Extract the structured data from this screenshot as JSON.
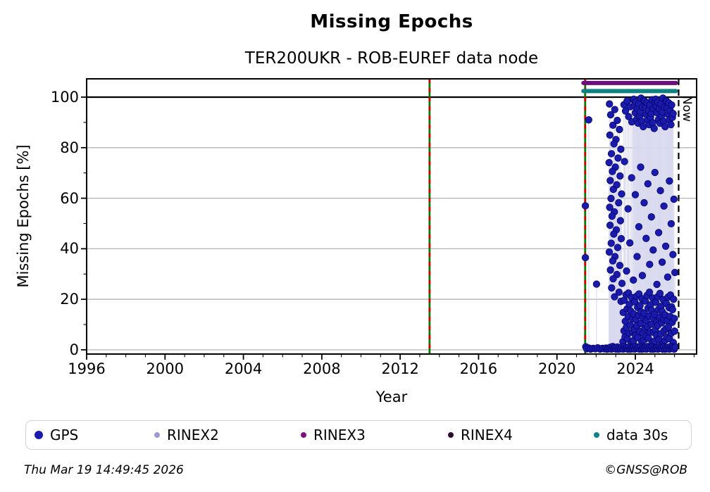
{
  "header": {
    "title": "Missing Epochs",
    "subtitle": "TER200UKR - ROB-EUREF data node"
  },
  "axes": {
    "x": {
      "label": "Year",
      "major_ticks": [
        1996,
        2000,
        2004,
        2008,
        2012,
        2016,
        2020,
        2024
      ],
      "minor_step_years": 1,
      "range": [
        1996,
        2027.13
      ]
    },
    "y": {
      "label": "Missing Epochs [%]",
      "major_ticks": [
        0,
        20,
        40,
        60,
        80,
        100
      ],
      "minor_step": 10,
      "range_pct": [
        0,
        107.2
      ]
    }
  },
  "annotations": {
    "now_label": "Now"
  },
  "legend": {
    "items": [
      {
        "label": "GPS",
        "color": "#1a1aad",
        "size": "large"
      },
      {
        "label": "RINEX2",
        "color": "#9a9ad2",
        "size": "small"
      },
      {
        "label": "RINEX3",
        "color": "#7d107d",
        "size": "small"
      },
      {
        "label": "RINEX4",
        "color": "#2e0b2e",
        "size": "small"
      },
      {
        "label": "data 30s",
        "color": "#0e8282",
        "size": "small"
      }
    ]
  },
  "footer": {
    "timestamp": "Thu Mar 19 14:49:45 2026",
    "credit": "©GNSS@ROB"
  },
  "colors": {
    "gps_point": "#1a1aad",
    "gps_point_edge": "#00005e",
    "stem": "#d9d9ef",
    "grid": "#b4b4b4",
    "hundred_line": "#000000",
    "frame": "#000000",
    "event_line_green": "#007d00",
    "event_line_red": "#d40000",
    "now_line": "#000000",
    "rinex3_band": "#6e0e7e",
    "data30s_band": "#0e8282"
  },
  "chart_data": {
    "type": "scatter",
    "title": "Missing Epochs",
    "subtitle": "TER200UKR - ROB-EUREF data node",
    "xlabel": "Year",
    "ylabel": "Missing Epochs [%]",
    "xlim": [
      1996,
      2027.13
    ],
    "ylim": [
      0,
      107.2
    ],
    "grid": "horizontal-major-gray, solid black line at 100",
    "legend_position": "bottom",
    "event_lines": [
      {
        "year": 2013.5,
        "style": "vertical green with red dashes"
      },
      {
        "year": 2021.44,
        "style": "vertical green with red dashes"
      }
    ],
    "now_line": {
      "year": 2026.21,
      "label": "Now",
      "style": "vertical black dashed"
    },
    "bands": [
      {
        "name": "RINEX3",
        "color": "#6e0e7e",
        "year_start": 2021.35,
        "year_end": 2026.07,
        "display_pct": 105.6
      },
      {
        "name": "data 30s",
        "color": "#0e8282",
        "year_start": 2021.35,
        "year_end": 2026.07,
        "display_pct": 102.4
      }
    ],
    "series_name": "GPS",
    "gps_points": [
      [
        2021.45,
        57
      ],
      [
        2021.45,
        36.5
      ],
      [
        2021.62,
        91
      ],
      [
        2021.47,
        1.2
      ],
      [
        2021.52,
        0.4
      ],
      [
        2021.63,
        0.7
      ],
      [
        2021.72,
        0.3
      ],
      [
        2021.84,
        0.6
      ],
      [
        2021.96,
        0.4
      ],
      [
        2022.08,
        0.8
      ],
      [
        2022.2,
        0.3
      ],
      [
        2022.32,
        0.6
      ],
      [
        2022.41,
        0.4
      ],
      [
        2022.5,
        0.7
      ],
      [
        2022.02,
        26
      ],
      [
        2022.68,
        97.3
      ],
      [
        2022.95,
        95.1
      ],
      [
        2022.74,
        93.0
      ],
      [
        2023.08,
        90.8
      ],
      [
        2022.86,
        88.9
      ],
      [
        2023.19,
        87.2
      ],
      [
        2022.7,
        85.0
      ],
      [
        2023.01,
        83.2
      ],
      [
        2022.91,
        81.5
      ],
      [
        2023.26,
        79.4
      ],
      [
        2022.78,
        77.6
      ],
      [
        2023.12,
        75.9
      ],
      [
        2022.66,
        74.1
      ],
      [
        2022.98,
        72.3
      ],
      [
        2022.83,
        70.6
      ],
      [
        2023.22,
        68.8
      ],
      [
        2022.72,
        67.0
      ],
      [
        2023.05,
        65.3
      ],
      [
        2022.88,
        63.5
      ],
      [
        2023.3,
        61.7
      ],
      [
        2022.76,
        59.9
      ],
      [
        2023.15,
        58.2
      ],
      [
        2022.69,
        56.4
      ],
      [
        2022.93,
        54.6
      ],
      [
        2022.81,
        52.9
      ],
      [
        2023.24,
        51.1
      ],
      [
        2022.71,
        49.3
      ],
      [
        2023.03,
        47.5
      ],
      [
        2022.9,
        45.8
      ],
      [
        2023.28,
        44.0
      ],
      [
        2022.77,
        42.2
      ],
      [
        2023.1,
        40.5
      ],
      [
        2022.67,
        38.7
      ],
      [
        2022.96,
        36.9
      ],
      [
        2022.85,
        35.2
      ],
      [
        2023.21,
        33.4
      ],
      [
        2022.73,
        31.6
      ],
      [
        2023.06,
        29.8
      ],
      [
        2022.87,
        28.1
      ],
      [
        2023.32,
        26.3
      ],
      [
        2022.79,
        24.5
      ],
      [
        2023.17,
        22.8
      ],
      [
        2022.94,
        21.0
      ],
      [
        2023.27,
        19.2
      ],
      [
        2023.42,
        97.0
      ],
      [
        2023.5,
        94.5
      ],
      [
        2023.58,
        98.5
      ],
      [
        2023.66,
        92.3
      ],
      [
        2023.74,
        96.2
      ],
      [
        2023.82,
        90.2
      ],
      [
        2023.88,
        99.0
      ],
      [
        2023.45,
        74.5
      ],
      [
        2023.55,
        31.2
      ],
      [
        2023.63,
        55.8
      ],
      [
        2023.72,
        42.3
      ],
      [
        2023.81,
        68.1
      ],
      [
        2023.9,
        27.6
      ],
      [
        2024.0,
        61.4
      ],
      [
        2024.09,
        36.9
      ],
      [
        2024.18,
        48.7
      ],
      [
        2024.27,
        72.3
      ],
      [
        2024.36,
        29.4
      ],
      [
        2024.45,
        58.2
      ],
      [
        2024.55,
        44.1
      ],
      [
        2024.64,
        65.7
      ],
      [
        2024.73,
        33.8
      ],
      [
        2024.82,
        52.6
      ],
      [
        2024.91,
        39.5
      ],
      [
        2025.0,
        70.2
      ],
      [
        2025.1,
        25.9
      ],
      [
        2025.19,
        46.4
      ],
      [
        2025.28,
        63.0
      ],
      [
        2025.37,
        34.7
      ],
      [
        2025.46,
        56.9
      ],
      [
        2025.55,
        41.0
      ],
      [
        2025.65,
        28.8
      ],
      [
        2025.74,
        66.8
      ],
      [
        2025.83,
        49.9
      ],
      [
        2025.92,
        37.7
      ],
      [
        2025.97,
        59.6
      ],
      [
        2026.02,
        30.6
      ],
      [
        2023.92,
        99.2
      ],
      [
        2023.957,
        96.5
      ],
      [
        2023.994,
        93.8
      ],
      [
        2024.032,
        98.1
      ],
      [
        2024.069,
        91.2
      ],
      [
        2024.106,
        95.3
      ],
      [
        2024.143,
        89.7
      ],
      [
        2024.18,
        97.4
      ],
      [
        2024.218,
        92.6
      ],
      [
        2024.255,
        94.2
      ],
      [
        2024.292,
        99.6
      ],
      [
        2024.329,
        90.5
      ],
      [
        2024.366,
        96.0
      ],
      [
        2024.404,
        88.3
      ],
      [
        2024.441,
        98.8
      ],
      [
        2024.478,
        98.4
      ],
      [
        2024.515,
        95.8
      ],
      [
        2024.552,
        93.1
      ],
      [
        2024.59,
        97.7
      ],
      [
        2024.627,
        90.8
      ],
      [
        2024.664,
        94.7
      ],
      [
        2024.701,
        89.1
      ],
      [
        2024.738,
        96.9
      ],
      [
        2024.776,
        92.0
      ],
      [
        2024.813,
        93.5
      ],
      [
        2024.85,
        99.0
      ],
      [
        2024.887,
        89.9
      ],
      [
        2024.924,
        95.5
      ],
      [
        2024.962,
        87.6
      ],
      [
        2024.999,
        98.2
      ],
      [
        2025.036,
        99.2
      ],
      [
        2025.073,
        96.5
      ],
      [
        2025.11,
        93.8
      ],
      [
        2025.148,
        98.1
      ],
      [
        2025.185,
        91.2
      ],
      [
        2025.222,
        95.3
      ],
      [
        2025.259,
        89.7
      ],
      [
        2025.296,
        97.4
      ],
      [
        2025.334,
        92.6
      ],
      [
        2025.371,
        94.2
      ],
      [
        2025.408,
        99.6
      ],
      [
        2025.445,
        90.5
      ],
      [
        2025.482,
        96.0
      ],
      [
        2025.52,
        88.3
      ],
      [
        2025.557,
        98.8
      ],
      [
        2025.594,
        98.4
      ],
      [
        2025.631,
        95.8
      ],
      [
        2025.668,
        93.1
      ],
      [
        2025.706,
        97.7
      ],
      [
        2025.743,
        90.8
      ],
      [
        2025.78,
        94.7
      ],
      [
        2025.817,
        89.1
      ],
      [
        2025.854,
        96.9
      ],
      [
        2025.892,
        92.0
      ],
      [
        2025.929,
        93.5
      ],
      [
        2023.366,
        3.2
      ],
      [
        2023.381,
        14.8
      ],
      [
        2023.42,
        7.5
      ],
      [
        2023.434,
        19.6
      ],
      [
        2023.473,
        5.1
      ],
      [
        2023.488,
        11.3
      ],
      [
        2023.527,
        21.8
      ],
      [
        2023.542,
        8.9
      ],
      [
        2023.58,
        16.2
      ],
      [
        2023.595,
        4.3
      ],
      [
        2023.634,
        13.1
      ],
      [
        2023.649,
        22.5
      ],
      [
        2023.688,
        6.7
      ],
      [
        2023.702,
        18.0
      ],
      [
        2023.741,
        9.8
      ],
      [
        2023.756,
        15.4
      ],
      [
        2023.795,
        2.6
      ],
      [
        2023.81,
        20.7
      ],
      [
        2023.848,
        12.2
      ],
      [
        2023.863,
        7.1
      ],
      [
        2023.902,
        3.6
      ],
      [
        2023.917,
        14.2
      ],
      [
        2023.956,
        8.1
      ],
      [
        2023.97,
        19.0
      ],
      [
        2024.009,
        5.6
      ],
      [
        2024.024,
        11.9
      ],
      [
        2024.063,
        21.2
      ],
      [
        2024.078,
        9.5
      ],
      [
        2024.116,
        16.8
      ],
      [
        2024.131,
        4.8
      ],
      [
        2024.17,
        13.7
      ],
      [
        2024.185,
        22.1
      ],
      [
        2024.224,
        7.3
      ],
      [
        2024.238,
        17.5
      ],
      [
        2024.277,
        10.4
      ],
      [
        2024.292,
        15.0
      ],
      [
        2024.331,
        3.0
      ],
      [
        2024.346,
        20.2
      ],
      [
        2024.384,
        12.8
      ],
      [
        2024.399,
        6.5
      ],
      [
        2024.438,
        3.9
      ],
      [
        2024.453,
        14.5
      ],
      [
        2024.492,
        8.5
      ],
      [
        2024.506,
        19.3
      ],
      [
        2024.545,
        5.3
      ],
      [
        2024.56,
        11.6
      ],
      [
        2024.599,
        21.5
      ],
      [
        2024.614,
        9.2
      ],
      [
        2024.652,
        16.5
      ],
      [
        2024.667,
        4.6
      ],
      [
        2024.706,
        13.4
      ],
      [
        2024.721,
        22.8
      ],
      [
        2024.76,
        7.0
      ],
      [
        2024.774,
        17.8
      ],
      [
        2024.813,
        10.1
      ],
      [
        2024.828,
        15.7
      ],
      [
        2024.867,
        2.8
      ],
      [
        2024.882,
        20.5
      ],
      [
        2024.92,
        12.5
      ],
      [
        2024.935,
        6.9
      ],
      [
        2024.974,
        3.4
      ],
      [
        2024.989,
        14.0
      ],
      [
        2025.028,
        7.8
      ],
      [
        2025.042,
        18.8
      ],
      [
        2025.081,
        5.8
      ],
      [
        2025.096,
        11.0
      ],
      [
        2025.135,
        21.0
      ],
      [
        2025.15,
        9.7
      ],
      [
        2025.188,
        16.0
      ],
      [
        2025.203,
        4.1
      ],
      [
        2025.242,
        12.9
      ],
      [
        2025.257,
        22.3
      ],
      [
        2025.296,
        6.3
      ],
      [
        2025.31,
        17.2
      ],
      [
        2025.349,
        10.7
      ],
      [
        2025.364,
        15.2
      ],
      [
        2025.403,
        2.4
      ],
      [
        2025.418,
        19.9
      ],
      [
        2025.456,
        12.0
      ],
      [
        2025.471,
        7.6
      ],
      [
        2025.51,
        3.7
      ],
      [
        2025.525,
        13.8
      ],
      [
        2025.564,
        8.3
      ],
      [
        2025.578,
        18.4
      ],
      [
        2025.617,
        5.0
      ],
      [
        2025.632,
        11.5
      ],
      [
        2025.671,
        20.9
      ],
      [
        2025.686,
        9.0
      ],
      [
        2025.724,
        16.7
      ],
      [
        2025.739,
        4.4
      ],
      [
        2025.778,
        13.2
      ],
      [
        2025.793,
        21.7
      ],
      [
        2025.832,
        6.6
      ],
      [
        2025.846,
        17.0
      ],
      [
        2025.885,
        10.9
      ],
      [
        2025.9,
        15.9
      ],
      [
        2025.939,
        2.9
      ],
      [
        2025.954,
        20.0
      ],
      [
        2025.992,
        12.4
      ],
      [
        2026.007,
        7.4
      ],
      [
        2022.55,
        0.2
      ],
      [
        2022.609,
        0.7
      ],
      [
        2022.668,
        0.4
      ],
      [
        2022.728,
        1.0
      ],
      [
        2022.787,
        0.3
      ],
      [
        2022.846,
        1.3
      ],
      [
        2022.905,
        0.6
      ],
      [
        2022.964,
        0.9
      ],
      [
        2023.024,
        0.25
      ],
      [
        2023.083,
        1.1
      ],
      [
        2023.142,
        0.2
      ],
      [
        2023.201,
        0.7
      ],
      [
        2023.26,
        0.4
      ],
      [
        2023.32,
        1.0
      ],
      [
        2023.379,
        0.3
      ],
      [
        2023.438,
        1.3
      ],
      [
        2023.497,
        0.6
      ],
      [
        2023.556,
        0.9
      ],
      [
        2023.616,
        0.25
      ],
      [
        2023.675,
        1.1
      ],
      [
        2023.734,
        0.2
      ],
      [
        2023.793,
        0.7
      ],
      [
        2023.852,
        0.4
      ],
      [
        2023.912,
        1.0
      ],
      [
        2023.971,
        0.3
      ],
      [
        2024.03,
        1.3
      ],
      [
        2024.089,
        0.6
      ],
      [
        2024.148,
        0.9
      ],
      [
        2024.208,
        0.25
      ],
      [
        2024.267,
        1.1
      ],
      [
        2024.326,
        0.2
      ],
      [
        2024.385,
        0.7
      ],
      [
        2024.444,
        0.4
      ],
      [
        2024.504,
        1.0
      ],
      [
        2024.563,
        0.3
      ],
      [
        2024.622,
        1.3
      ],
      [
        2024.681,
        0.6
      ],
      [
        2024.74,
        0.9
      ],
      [
        2024.8,
        0.25
      ],
      [
        2024.859,
        1.1
      ],
      [
        2024.918,
        0.2
      ],
      [
        2024.977,
        0.7
      ],
      [
        2025.036,
        0.4
      ],
      [
        2025.096,
        1.0
      ],
      [
        2025.155,
        0.3
      ],
      [
        2025.214,
        1.3
      ],
      [
        2025.273,
        0.6
      ],
      [
        2025.332,
        0.9
      ],
      [
        2025.392,
        0.25
      ],
      [
        2025.451,
        1.1
      ],
      [
        2025.51,
        0.2
      ],
      [
        2025.569,
        0.7
      ],
      [
        2025.628,
        0.4
      ],
      [
        2025.688,
        1.0
      ],
      [
        2025.747,
        0.3
      ],
      [
        2025.806,
        1.3
      ],
      [
        2025.865,
        0.6
      ],
      [
        2025.924,
        0.9
      ],
      [
        2025.984,
        0.25
      ],
      [
        2026.043,
        1.1
      ]
    ]
  }
}
